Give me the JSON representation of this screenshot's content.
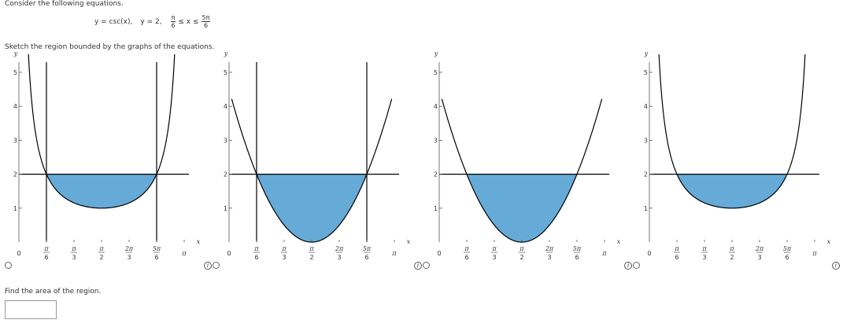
{
  "question": {
    "intro": "Consider the following equations.",
    "eq1": "y = csc(x),",
    "eq2": "y = 2,",
    "ineq_left_num": "π",
    "ineq_left_den": "6",
    "ineq_mid": "≤ x ≤",
    "ineq_right_num": "5π",
    "ineq_right_den": "6",
    "instruction": "Sketch the region bounded by the graphs of the equations.",
    "find": "Find the area of the region.",
    "answer_value": ""
  },
  "axes": {
    "x_label": "x",
    "y_label": "y",
    "y_ticks": [
      "1",
      "2",
      "3",
      "4",
      "5"
    ],
    "x_ticks": [
      {
        "num": "π",
        "den": "6"
      },
      {
        "num": "π",
        "den": "3"
      },
      {
        "num": "π",
        "den": "2"
      },
      {
        "num": "2π",
        "den": "3"
      },
      {
        "num": "5π",
        "den": "6"
      }
    ],
    "x_end": "π",
    "origin": "0"
  },
  "info_icon": "i",
  "colors": {
    "fill": "#66aad8",
    "curve": "#000000",
    "line": "#000000"
  },
  "chart_data": [
    {
      "type": "area",
      "option": 1,
      "curve": "y = csc(x)",
      "hline": 2,
      "vlines": [
        "π/6",
        "5π/6"
      ],
      "shaded": "between y = csc(x) and y = 2, π/6 ≤ x ≤ 5π/6",
      "xlim": [
        0,
        3.1416
      ],
      "ylim": [
        0,
        5
      ]
    },
    {
      "type": "area",
      "option": 2,
      "curve": "cup touching x-axis at π/2",
      "hline": 2,
      "vlines": [
        "π/6",
        "5π/6"
      ],
      "shaded": "under y = 2, above curve, π/6 ≤ x ≤ 5π/6",
      "xlim": [
        0,
        3.1416
      ],
      "ylim": [
        0,
        5
      ]
    },
    {
      "type": "area",
      "option": 3,
      "curve": "cup touching x-axis at π/2",
      "hline": 2,
      "vlines": [],
      "shaded": "between curve and y = 2",
      "xlim": [
        0,
        3.1416
      ],
      "ylim": [
        0,
        5
      ]
    },
    {
      "type": "area",
      "option": 4,
      "curve": "y = csc(x)",
      "hline": 2,
      "vlines": [],
      "shaded": "between y = csc(x) and y = 2",
      "xlim": [
        0,
        3.1416
      ],
      "ylim": [
        0,
        5
      ]
    }
  ]
}
